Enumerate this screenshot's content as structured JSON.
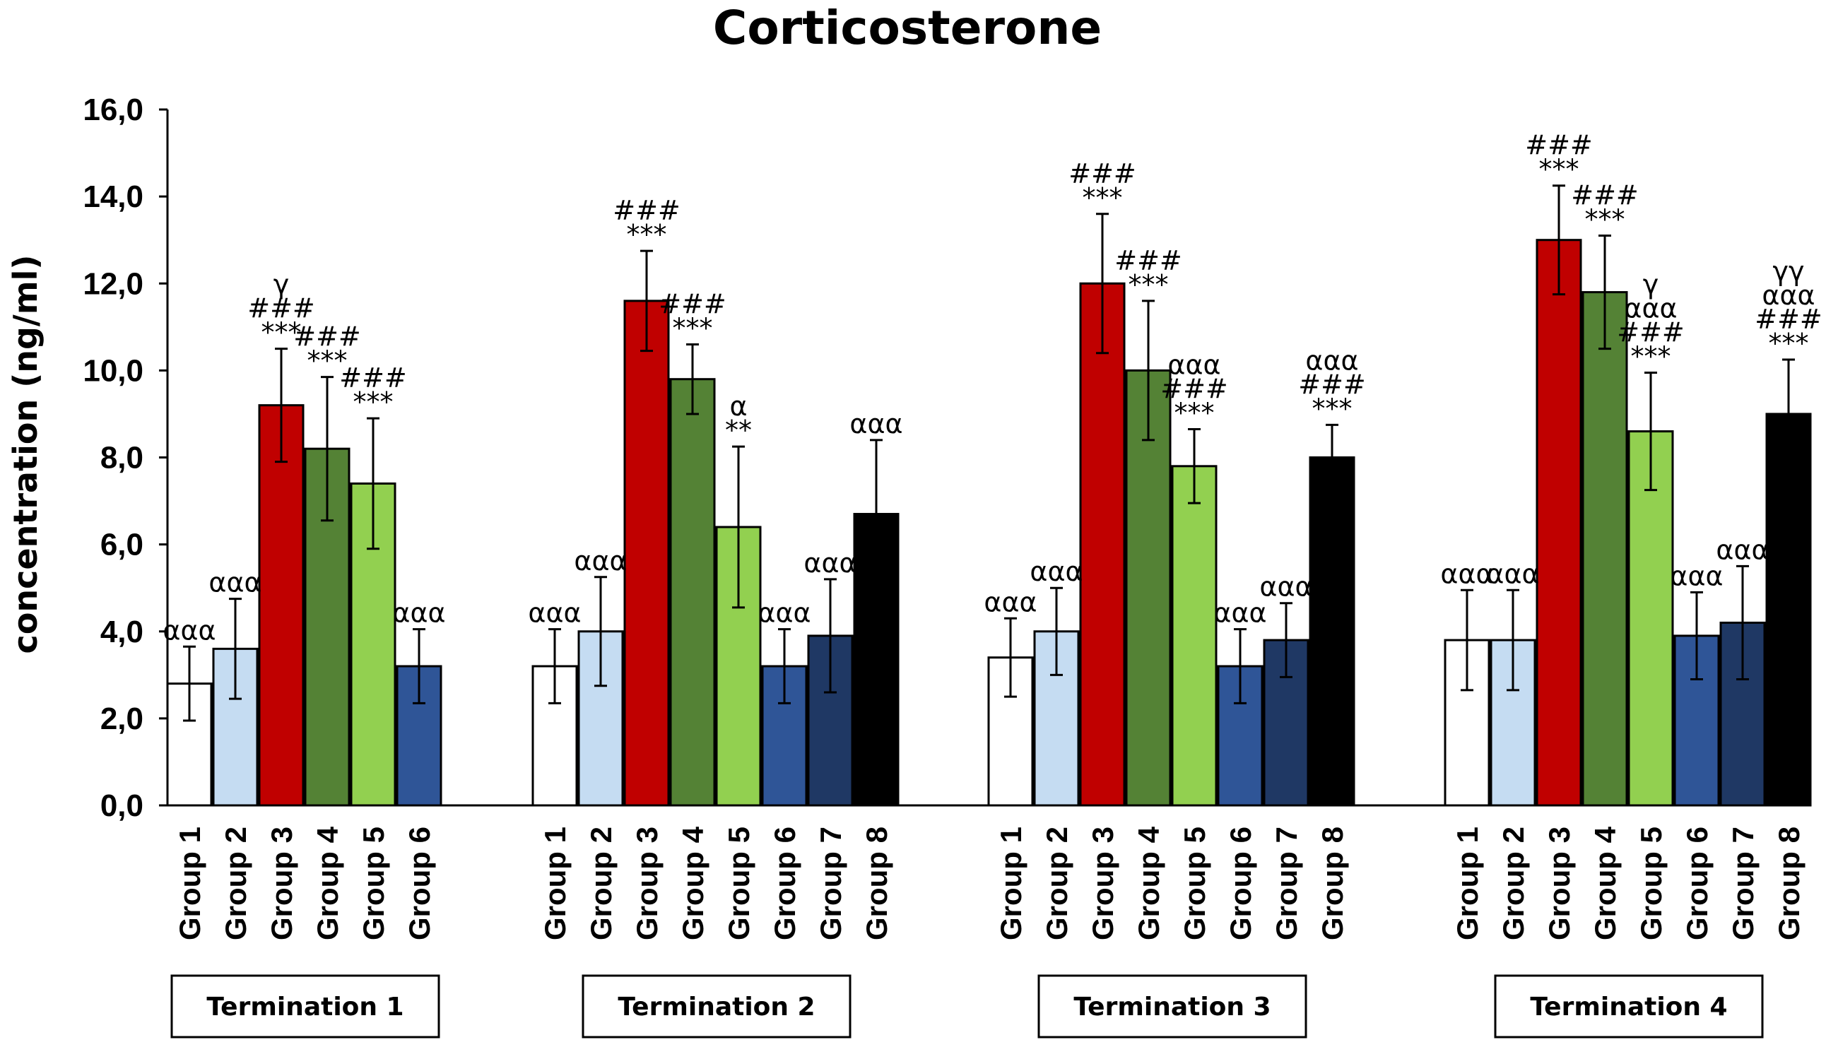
{
  "chart_data": {
    "type": "bar",
    "title": "Corticosterone",
    "xlabel": "",
    "ylabel": "concentration (ng/ml)",
    "ylim": [
      0,
      16
    ],
    "yticks": [
      "0,0",
      "2,0",
      "4,0",
      "6,0",
      "8,0",
      "10,0",
      "12,0",
      "14,0",
      "16,0"
    ],
    "grid": false,
    "group_colors": {
      "Group 1": "#ffffff",
      "Group 2": "#c5dcf2",
      "Group 3": "#c00000",
      "Group 4": "#548235",
      "Group 5": "#92d050",
      "Group 6": "#2f5597",
      "Group 7": "#1f3864",
      "Group 8": "#000000"
    },
    "panels": [
      {
        "label": "Termination 1",
        "bars": [
          {
            "group": "Group 1",
            "value": 2.8,
            "error": 0.85,
            "annotation": [
              "ααα"
            ]
          },
          {
            "group": "Group 2",
            "value": 3.6,
            "error": 1.15,
            "annotation": [
              "ααα"
            ]
          },
          {
            "group": "Group 3",
            "value": 9.2,
            "error": 1.3,
            "annotation": [
              "γ",
              "###",
              "***"
            ]
          },
          {
            "group": "Group 4",
            "value": 8.2,
            "error": 1.65,
            "annotation": [
              "###",
              "***"
            ]
          },
          {
            "group": "Group 5",
            "value": 7.4,
            "error": 1.5,
            "annotation": [
              "###",
              "***"
            ]
          },
          {
            "group": "Group 6",
            "value": 3.2,
            "error": 0.85,
            "annotation": [
              "ααα"
            ]
          }
        ]
      },
      {
        "label": "Termination 2",
        "bars": [
          {
            "group": "Group 1",
            "value": 3.2,
            "error": 0.85,
            "annotation": [
              "ααα"
            ]
          },
          {
            "group": "Group 2",
            "value": 4.0,
            "error": 1.25,
            "annotation": [
              "ααα"
            ]
          },
          {
            "group": "Group 3",
            "value": 11.6,
            "error": 1.15,
            "annotation": [
              "###",
              "***"
            ]
          },
          {
            "group": "Group 4",
            "value": 9.8,
            "error": 0.8,
            "annotation": [
              "###",
              "***"
            ]
          },
          {
            "group": "Group 5",
            "value": 6.4,
            "error": 1.85,
            "annotation": [
              "α",
              "**"
            ]
          },
          {
            "group": "Group 6",
            "value": 3.2,
            "error": 0.85,
            "annotation": [
              "ααα"
            ]
          },
          {
            "group": "Group 7",
            "value": 3.9,
            "error": 1.3,
            "annotation": [
              "ααα"
            ]
          },
          {
            "group": "Group 8",
            "value": 6.7,
            "error": 1.7,
            "annotation": [
              "ααα"
            ]
          }
        ]
      },
      {
        "label": "Termination 3",
        "bars": [
          {
            "group": "Group 1",
            "value": 3.4,
            "error": 0.9,
            "annotation": [
              "ααα"
            ]
          },
          {
            "group": "Group 2",
            "value": 4.0,
            "error": 1.0,
            "annotation": [
              "ααα"
            ]
          },
          {
            "group": "Group 3",
            "value": 12.0,
            "error": 1.6,
            "annotation": [
              "###",
              "***"
            ]
          },
          {
            "group": "Group 4",
            "value": 10.0,
            "error": 1.6,
            "annotation": [
              "###",
              "***"
            ]
          },
          {
            "group": "Group 5",
            "value": 7.8,
            "error": 0.85,
            "annotation": [
              "ααα",
              "###",
              "***"
            ]
          },
          {
            "group": "Group 6",
            "value": 3.2,
            "error": 0.85,
            "annotation": [
              "ααα"
            ]
          },
          {
            "group": "Group 7",
            "value": 3.8,
            "error": 0.85,
            "annotation": [
              "ααα"
            ]
          },
          {
            "group": "Group 8",
            "value": 8.0,
            "error": 0.75,
            "annotation": [
              "ααα",
              "###",
              "***"
            ]
          }
        ]
      },
      {
        "label": "Termination 4",
        "bars": [
          {
            "group": "Group 1",
            "value": 3.8,
            "error": 1.15,
            "annotation": [
              "ααα"
            ]
          },
          {
            "group": "Group 2",
            "value": 3.8,
            "error": 1.15,
            "annotation": [
              "ααα"
            ]
          },
          {
            "group": "Group 3",
            "value": 13.0,
            "error": 1.25,
            "annotation": [
              "###",
              "***"
            ]
          },
          {
            "group": "Group 4",
            "value": 11.8,
            "error": 1.3,
            "annotation": [
              "###",
              "***"
            ]
          },
          {
            "group": "Group 5",
            "value": 8.6,
            "error": 1.35,
            "annotation": [
              "γ",
              "ααα",
              "###",
              "***"
            ]
          },
          {
            "group": "Group 6",
            "value": 3.9,
            "error": 1.0,
            "annotation": [
              "ααα"
            ]
          },
          {
            "group": "Group 7",
            "value": 4.2,
            "error": 1.3,
            "annotation": [
              "ααα"
            ]
          },
          {
            "group": "Group 8",
            "value": 9.0,
            "error": 1.25,
            "annotation": [
              "γγ",
              "ααα",
              "###",
              "***"
            ]
          }
        ]
      }
    ]
  }
}
